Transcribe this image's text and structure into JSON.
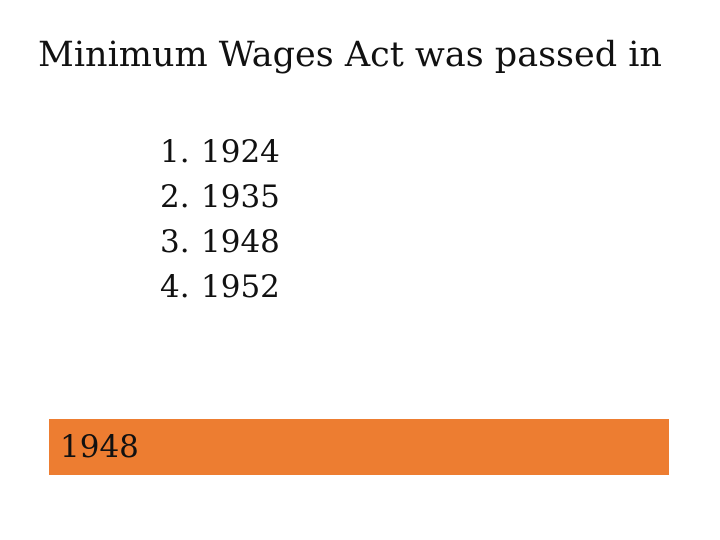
{
  "slide": {
    "title": "Minimum Wages Act was passed in",
    "options": [
      {
        "number": "1.",
        "value": "1924"
      },
      {
        "number": "2.",
        "value": "1935"
      },
      {
        "number": "3.",
        "value": "1948"
      },
      {
        "number": "4.",
        "value": "1952"
      }
    ],
    "answer": {
      "text": "1948",
      "background_color": "#ED7D31"
    }
  }
}
